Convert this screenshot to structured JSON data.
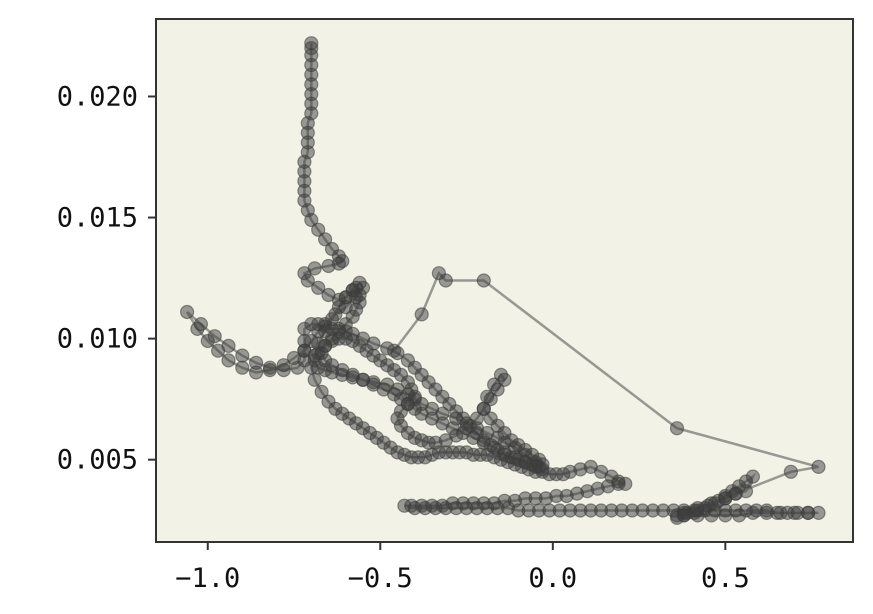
{
  "chart_data": {
    "type": "scatter",
    "title": "",
    "xlabel": "",
    "ylabel": "",
    "xlim": [
      -1.15,
      0.87
    ],
    "ylim": [
      0.0016,
      0.0232
    ],
    "grid": false,
    "x_ticks": [
      {
        "value": -1.0,
        "label": "−1.0"
      },
      {
        "value": -0.5,
        "label": "−0.5"
      },
      {
        "value": 0.0,
        "label": "0.0"
      },
      {
        "value": 0.5,
        "label": "0.5"
      }
    ],
    "y_ticks": [
      {
        "value": 0.005,
        "label": "0.005"
      },
      {
        "value": 0.01,
        "label": "0.010"
      },
      {
        "value": 0.015,
        "label": "0.015"
      },
      {
        "value": 0.02,
        "label": "0.020"
      }
    ],
    "colors": {
      "plot_background": "#f2f2e6",
      "marker": "#3d3d3d",
      "axes": "#333333"
    },
    "series": [
      {
        "x": [
          -0.7,
          -0.7,
          -0.7,
          -0.7,
          -0.7,
          -0.7,
          -0.7,
          -0.7,
          -0.7,
          -0.71,
          -0.71,
          -0.71,
          -0.71,
          -0.72,
          -0.72,
          -0.72,
          -0.72,
          -0.72,
          -0.71,
          -0.7,
          -0.68,
          -0.66,
          -0.64,
          -0.62,
          -0.61,
          -0.62,
          -0.65,
          -0.69,
          -0.72,
          -0.71,
          -0.68,
          -0.65,
          -0.62,
          -0.6,
          -0.58,
          -0.56,
          -0.55,
          -0.57,
          -0.6,
          -0.63,
          -0.66,
          -0.68,
          -0.7,
          -0.72,
          -0.75,
          -0.78,
          -0.82,
          -0.86,
          -0.9,
          -0.94,
          -0.97,
          -1.0,
          -1.03,
          -1.06,
          -1.02,
          -0.98,
          -0.94,
          -0.9,
          -0.86,
          -0.82,
          -0.78,
          -0.74,
          -0.72,
          -0.72,
          -0.72,
          -0.72,
          -0.7,
          -0.68,
          -0.66,
          -0.64,
          -0.62,
          -0.6,
          -0.58,
          -0.55,
          -0.52,
          -0.48,
          -0.45,
          -0.42,
          -0.4,
          -0.38,
          -0.36,
          -0.34,
          -0.32,
          -0.3,
          -0.28,
          -0.26,
          -0.24,
          -0.22,
          -0.2,
          -0.18,
          -0.16,
          -0.14,
          -0.12,
          -0.1,
          -0.08,
          -0.06,
          -0.04,
          -0.03,
          -0.05,
          -0.08,
          -0.11,
          -0.14,
          -0.16,
          -0.19,
          -0.22,
          -0.25,
          -0.28,
          -0.32,
          -0.35,
          -0.38,
          -0.4,
          -0.42,
          -0.45,
          -0.48,
          -0.52,
          -0.55,
          -0.58,
          -0.61,
          -0.64,
          -0.66,
          -0.68,
          -0.69,
          -0.68,
          -0.66,
          -0.64,
          -0.62,
          -0.6,
          -0.58,
          -0.56,
          -0.54,
          -0.52,
          -0.5,
          -0.48,
          -0.46,
          -0.44,
          -0.42,
          -0.41,
          -0.4,
          -0.42,
          -0.44,
          -0.45,
          -0.44,
          -0.42,
          -0.4,
          -0.38,
          -0.36,
          -0.34,
          -0.31,
          -0.28,
          -0.25,
          -0.22,
          -0.2,
          -0.18,
          -0.16,
          -0.14,
          -0.15,
          -0.17,
          -0.19,
          -0.2,
          -0.18,
          -0.16,
          -0.14,
          -0.12,
          -0.1,
          -0.08,
          -0.06,
          -0.04,
          -0.03,
          -0.05,
          -0.08,
          -0.11,
          -0.14,
          -0.17,
          -0.2,
          -0.23,
          -0.26,
          -0.29,
          -0.32,
          -0.35,
          -0.38,
          -0.4,
          -0.42,
          -0.44,
          -0.46,
          -0.49,
          -0.52,
          -0.55,
          -0.58,
          -0.61,
          -0.64,
          -0.66,
          -0.67,
          -0.66,
          -0.64,
          -0.62,
          -0.6,
          -0.58,
          -0.57,
          -0.56,
          -0.56,
          -0.57,
          -0.58,
          -0.6,
          -0.62,
          -0.64,
          -0.66,
          -0.68,
          -0.69,
          -0.7,
          -0.69,
          -0.67,
          -0.65,
          -0.63,
          -0.61,
          -0.59,
          -0.57,
          -0.55,
          -0.53,
          -0.51,
          -0.49,
          -0.47,
          -0.45,
          -0.43,
          -0.41,
          -0.39,
          -0.37,
          -0.35,
          -0.33,
          -0.31,
          -0.29,
          -0.27,
          -0.25,
          -0.23,
          -0.21,
          -0.19,
          -0.17,
          -0.15,
          -0.13,
          -0.11,
          -0.09,
          -0.07,
          -0.05,
          -0.03,
          -0.01,
          0.01,
          0.03,
          0.05,
          0.08,
          0.11,
          0.14,
          0.17,
          0.19,
          0.21,
          0.19,
          0.16,
          0.13,
          0.1,
          0.07,
          0.04,
          0.01,
          -0.02,
          -0.05,
          -0.08,
          -0.11,
          -0.14,
          -0.17,
          -0.2,
          -0.23,
          -0.26,
          -0.29,
          -0.32,
          -0.35,
          -0.38,
          -0.41,
          -0.43,
          -0.4,
          -0.37,
          -0.34,
          -0.31,
          -0.28,
          -0.25,
          -0.22,
          -0.19,
          -0.16,
          -0.13,
          -0.1,
          -0.07,
          -0.04,
          -0.01,
          0.02,
          0.05,
          0.08,
          0.11,
          0.14,
          0.17,
          0.2,
          0.23,
          0.26,
          0.29,
          0.32,
          0.35,
          0.38,
          0.41,
          0.44,
          0.47,
          0.5,
          0.53,
          0.56,
          0.59,
          0.62,
          0.65,
          0.68,
          0.71,
          0.74,
          0.77,
          0.74,
          0.7,
          0.66,
          0.62,
          0.58,
          0.54,
          0.5,
          0.46,
          0.42,
          0.38,
          0.36,
          0.39,
          0.42,
          0.45,
          0.48,
          0.5,
          0.52,
          0.54,
          0.56,
          0.58,
          0.56,
          0.53,
          0.5,
          0.47,
          0.44,
          0.41,
          0.38,
          0.36,
          0.38,
          0.42,
          0.46,
          0.5,
          0.53,
          0.69,
          0.77,
          0.36,
          -0.2,
          -0.31,
          -0.33,
          -0.38,
          -0.46
        ],
        "y": [
          0.0222,
          0.022,
          0.0217,
          0.0213,
          0.0209,
          0.0205,
          0.0201,
          0.0197,
          0.0193,
          0.0189,
          0.0185,
          0.0181,
          0.0177,
          0.0173,
          0.0169,
          0.0165,
          0.0161,
          0.0157,
          0.0153,
          0.0149,
          0.0145,
          0.0141,
          0.0137,
          0.0134,
          0.0132,
          0.0131,
          0.013,
          0.0129,
          0.0127,
          0.0124,
          0.0121,
          0.0118,
          0.0116,
          0.0117,
          0.012,
          0.0123,
          0.0121,
          0.0117,
          0.0113,
          0.011,
          0.0106,
          0.0103,
          0.0099,
          0.0095,
          0.0092,
          0.0089,
          0.0087,
          0.0086,
          0.0088,
          0.0091,
          0.0095,
          0.0099,
          0.0104,
          0.0111,
          0.0106,
          0.0101,
          0.0097,
          0.0093,
          0.009,
          0.0088,
          0.0087,
          0.0088,
          0.0091,
          0.0095,
          0.0099,
          0.0104,
          0.0106,
          0.0106,
          0.0105,
          0.0104,
          0.0104,
          0.0103,
          0.0102,
          0.01,
          0.0098,
          0.0096,
          0.0094,
          0.0091,
          0.0088,
          0.0085,
          0.0082,
          0.0079,
          0.0076,
          0.0073,
          0.007,
          0.0067,
          0.0064,
          0.0061,
          0.0058,
          0.0056,
          0.0054,
          0.0052,
          0.0051,
          0.005,
          0.0049,
          0.0048,
          0.0047,
          0.0046,
          0.0049,
          0.0052,
          0.0055,
          0.0057,
          0.0059,
          0.0061,
          0.0063,
          0.0065,
          0.0067,
          0.0069,
          0.0071,
          0.0073,
          0.0075,
          0.0077,
          0.0079,
          0.0081,
          0.0082,
          0.0083,
          0.0084,
          0.0085,
          0.0086,
          0.0087,
          0.0088,
          0.0091,
          0.0094,
          0.0097,
          0.0099,
          0.01,
          0.01,
          0.0099,
          0.0097,
          0.0095,
          0.0093,
          0.0091,
          0.0089,
          0.0087,
          0.0085,
          0.0082,
          0.0079,
          0.0076,
          0.0073,
          0.007,
          0.0067,
          0.0064,
          0.0061,
          0.0059,
          0.0058,
          0.0057,
          0.0057,
          0.0058,
          0.006,
          0.0063,
          0.0067,
          0.0071,
          0.0075,
          0.0079,
          0.0083,
          0.0085,
          0.0081,
          0.0076,
          0.0071,
          0.0067,
          0.0064,
          0.0061,
          0.0058,
          0.0056,
          0.0054,
          0.0052,
          0.005,
          0.0048,
          0.0047,
          0.0049,
          0.0051,
          0.0053,
          0.0055,
          0.0057,
          0.0059,
          0.0061,
          0.0063,
          0.0065,
          0.0067,
          0.0069,
          0.0071,
          0.0073,
          0.0075,
          0.0077,
          0.0079,
          0.0081,
          0.0083,
          0.0085,
          0.0087,
          0.0089,
          0.0091,
          0.0094,
          0.0097,
          0.01,
          0.0103,
          0.0106,
          0.0109,
          0.0112,
          0.0115,
          0.0118,
          0.0121,
          0.012,
          0.0117,
          0.0113,
          0.0108,
          0.0103,
          0.0098,
          0.0093,
          0.0088,
          0.0083,
          0.0078,
          0.0074,
          0.0071,
          0.0069,
          0.0067,
          0.0065,
          0.0063,
          0.0061,
          0.0059,
          0.0057,
          0.0055,
          0.0053,
          0.0052,
          0.0051,
          0.0051,
          0.0051,
          0.0052,
          0.0053,
          0.0053,
          0.0053,
          0.0053,
          0.0053,
          0.0052,
          0.0052,
          0.0052,
          0.0051,
          0.005,
          0.0049,
          0.0048,
          0.0047,
          0.0046,
          0.0045,
          0.0045,
          0.0044,
          0.0044,
          0.0044,
          0.0045,
          0.0046,
          0.0047,
          0.0045,
          0.0043,
          0.0041,
          0.004,
          0.004,
          0.0039,
          0.0038,
          0.0037,
          0.0036,
          0.0035,
          0.0035,
          0.0034,
          0.0034,
          0.0034,
          0.0033,
          0.0033,
          0.0032,
          0.0032,
          0.0032,
          0.0032,
          0.0032,
          0.0031,
          0.0031,
          0.0031,
          0.0031,
          0.0031,
          0.003,
          0.003,
          0.003,
          0.003,
          0.003,
          0.003,
          0.003,
          0.003,
          0.003,
          0.003,
          0.0029,
          0.0029,
          0.0029,
          0.0029,
          0.0029,
          0.0029,
          0.0029,
          0.0029,
          0.0029,
          0.0029,
          0.0029,
          0.0029,
          0.0029,
          0.0029,
          0.0029,
          0.0029,
          0.0029,
          0.0029,
          0.0029,
          0.0029,
          0.0029,
          0.0029,
          0.0029,
          0.0029,
          0.0029,
          0.0028,
          0.0028,
          0.0028,
          0.0028,
          0.0028,
          0.0028,
          0.0028,
          0.0028,
          0.0028,
          0.0028,
          0.0027,
          0.0027,
          0.0027,
          0.0027,
          0.0027,
          0.0027,
          0.0028,
          0.0029,
          0.0031,
          0.0033,
          0.0035,
          0.0037,
          0.0039,
          0.0041,
          0.0043,
          0.0037,
          0.0036,
          0.0034,
          0.0032,
          0.003,
          0.0028,
          0.0027,
          0.0026,
          0.0028,
          0.003,
          0.0032,
          0.0034,
          0.0036,
          0.0045,
          0.0047,
          0.0063,
          0.0124,
          0.0124,
          0.0127,
          0.011,
          0.0095
        ]
      }
    ]
  }
}
